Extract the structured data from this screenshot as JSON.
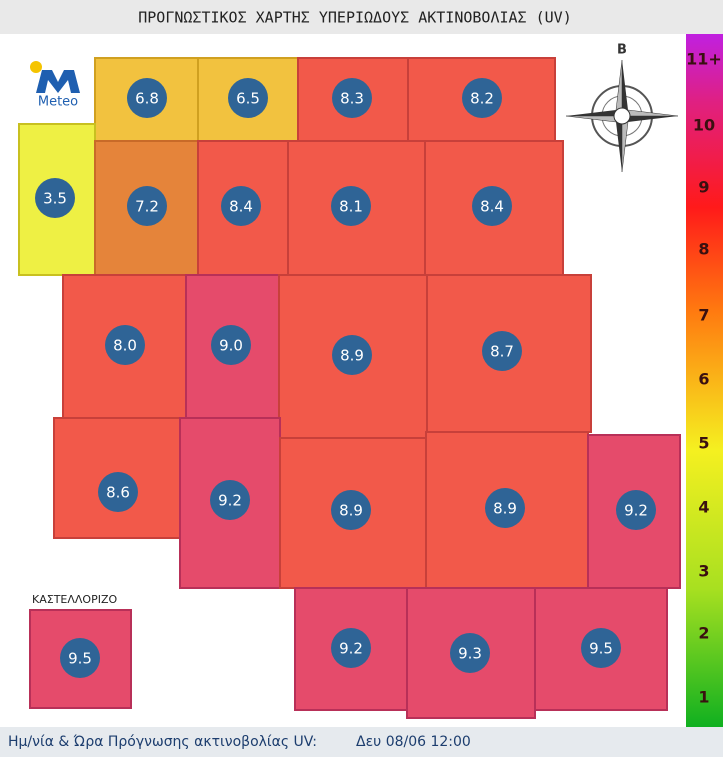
{
  "header": {
    "title": "ΠΡΟΓΝΩΣΤΙΚΟΣ ΧΑΡΤΗΣ ΥΠΕΡΙΩΔΟΥΣ ΑΚΤΙΝΟΒΟΛΙΑΣ (UV)"
  },
  "logo": {
    "text": "Meteo"
  },
  "compass": {
    "north": "Β"
  },
  "map": {
    "inset_label": "ΚΑΣΤΕΛΛΟΡΙΖΟ",
    "cells": [
      "6.8",
      "6.5",
      "8.3",
      "8.2",
      "3.5",
      "7.2",
      "8.4",
      "8.1",
      "8.4",
      "8.0",
      "9.0",
      "8.9",
      "8.7",
      "8.6",
      "9.2",
      "8.9",
      "8.9",
      "9.2",
      "9.5",
      "9.2",
      "9.3",
      "9.5"
    ]
  },
  "scale": {
    "labels": [
      "11+",
      "10",
      "9",
      "8",
      "7",
      "6",
      "5",
      "4",
      "3",
      "2",
      "1"
    ]
  },
  "footer": {
    "label": "Ημ/νία & Ώρα Πρόγνωσης ακτινοβολίας UV:",
    "datetime": "Δευ 08/06 12:00"
  }
}
